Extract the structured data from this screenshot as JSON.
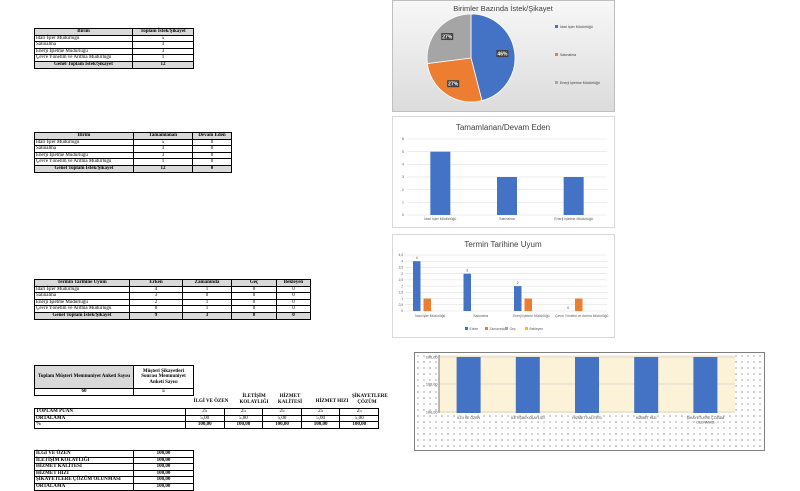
{
  "table1": {
    "headers": [
      "Birim",
      "Toplam İstek/Şikayet"
    ],
    "rows": [
      [
        "İdari İşler Müdürlüğü",
        "5"
      ],
      [
        "Satınalma",
        "3"
      ],
      [
        "Enerji İşletme Müdürlüğü",
        "3"
      ],
      [
        "Çevre Yönetim ve Arıtma Müdürlüğü",
        "1"
      ]
    ],
    "total": [
      "Genel Toplam İstek/Şikayet",
      "12"
    ]
  },
  "table2": {
    "headers": [
      "Birim",
      "Tamamlanan",
      "Devam Eden"
    ],
    "rows": [
      [
        "İdari İşler Müdürlüğü",
        "5",
        "0"
      ],
      [
        "Satınalma",
        "3",
        "0"
      ],
      [
        "Enerji İşletme Müdürlüğü",
        "3",
        "0"
      ],
      [
        "Çevre Yönetim ve Arıtma Müdürlüğü",
        "1",
        "0"
      ]
    ],
    "total": [
      "Genel Toplam İstek/Şikayet",
      "12",
      "0"
    ]
  },
  "table3": {
    "headers": [
      "Termin Tarihine Uyum",
      "Erken",
      "Zamanında",
      "Geç",
      "Bekleyen"
    ],
    "rows": [
      [
        "İdari İşler Müdürlüğü",
        "4",
        "1",
        "0",
        "0"
      ],
      [
        "Satınalma",
        "3",
        "0",
        "0",
        "0"
      ],
      [
        "Enerji İşletme Müdürlüğü",
        "2",
        "1",
        "0",
        "0"
      ],
      [
        "Çevre Yönetim ve Arıtma Müdürlüğü",
        "0",
        "1",
        "0",
        "0"
      ]
    ],
    "total": [
      "Genel Toplam İstek/Şikayet",
      "9",
      "3",
      "0",
      "0"
    ]
  },
  "survey": {
    "count_headers": [
      "Toplam Müşteri Memnuniyet Anketi Sayısı",
      "Müşteri Şikayetleri Sonrası Memnuniyet Anketi Sayısı"
    ],
    "count_values": [
      "60",
      "5"
    ],
    "criteria": [
      "İLGİ VE ÖZEN",
      "İLETİŞİM KOLAYLIĞI",
      "HİZMET KALİTESİ",
      "HİZMET HIZI",
      "ŞİKAYETLERE ÇÖZÜM"
    ],
    "rows": [
      {
        "label": "TOPLAM PUAN",
        "values": [
          "25",
          "25",
          "25",
          "25",
          "25"
        ]
      },
      {
        "label": "ORTALAMA",
        "values": [
          "5,00",
          "5,00",
          "5,00",
          "5,00",
          "5,00"
        ]
      },
      {
        "label": "%",
        "values": [
          "100,00",
          "100,00",
          "100,00",
          "100,00",
          "100,00"
        ]
      }
    ]
  },
  "table5": {
    "rows": [
      [
        "İLGİ VE ÖZEN",
        "100,00"
      ],
      [
        "İLETİŞİM KOLAYLIĞI",
        "100,00"
      ],
      [
        "HİZMET KALİTESİ",
        "100,00"
      ],
      [
        "HİZMET HIZI",
        "100,00"
      ],
      [
        "ŞİKAYETLERE ÇÖZÜM OLUNMASI",
        "100,00"
      ],
      [
        "ORTALAMA",
        "100,00"
      ]
    ]
  },
  "chart_data": [
    {
      "type": "pie",
      "title": "Birimler Bazında İstek/Şikayet",
      "categories": [
        "İdari İşler Müdürlüğü",
        "Satınalma",
        "Enerji İşletme Müdürlüğü"
      ],
      "values": [
        46,
        27,
        27
      ],
      "data_labels": [
        "46%",
        "27%",
        "27%"
      ],
      "colors": [
        "#4472c4",
        "#ed7d31",
        "#a5a5a5"
      ],
      "legend": "right"
    },
    {
      "type": "bar",
      "title": "Tamamlanan/Devam Eden",
      "categories": [
        "İdari İşler Müdürlüğü",
        "Satınalma",
        "Enerji İşletme Müdürlüğü"
      ],
      "values": [
        5,
        3,
        3
      ],
      "color": "#4472c4",
      "ylim": [
        0,
        6
      ],
      "grid": true
    },
    {
      "type": "bar",
      "title": "Termin Tarihine Uyum",
      "categories": [
        "İdari İşler Müdürlüğü",
        "Satınalma",
        "Enerji İşletme Müdürlüğü",
        "Çevre Yönetim ve Arıtma Müdürlüğü"
      ],
      "series": [
        {
          "name": "Erken",
          "values": [
            4,
            3,
            2,
            0
          ],
          "color": "#4472c4"
        },
        {
          "name": "Zamanında",
          "values": [
            1,
            0,
            1,
            1
          ],
          "color": "#ed7d31"
        },
        {
          "name": "Geç",
          "values": [
            0,
            0,
            0,
            0
          ],
          "color": "#a5a5a5"
        },
        {
          "name": "Bekleyen",
          "values": [
            0,
            0,
            0,
            0
          ],
          "color": "#ffc000"
        }
      ],
      "data_labels": [
        "4",
        "3",
        "2",
        "0"
      ],
      "yticks": [
        "0",
        "0,5",
        "1",
        "1,5",
        "2",
        "2,5",
        "3",
        "3,5",
        "4",
        "4,5"
      ],
      "ylim": [
        0,
        4.5
      ],
      "legend": "bottom",
      "grid": true
    },
    {
      "type": "bar",
      "categories": [
        "İLGİ VE ÖZEN",
        "İLETİŞİM KOLAYLIĞI",
        "HİZMET KALİTESİ",
        "HİZMET HIZI",
        "ŞİKAYETLERE ÇÖZÜM OLUNMASI"
      ],
      "values": [
        100,
        100,
        100,
        100,
        100
      ],
      "yticks": [
        "100,00",
        "100,00",
        "100,00"
      ],
      "color": "#4472c4",
      "grid": true
    }
  ]
}
